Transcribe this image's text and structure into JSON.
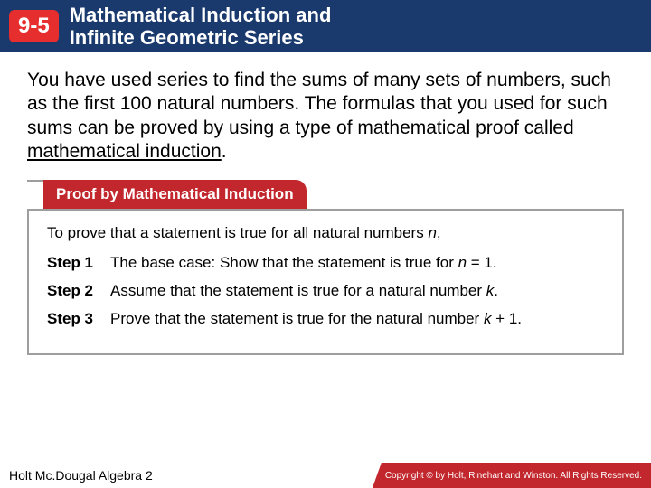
{
  "header": {
    "lesson_number": "9-5",
    "title_line1": "Mathematical Induction and",
    "title_line2": "Infinite Geometric Series",
    "bg_color": "#1a3a6e",
    "badge_bg": "#e62e2e",
    "text_color": "#ffffff"
  },
  "intro": {
    "text_part1": "You have used series to find the sums of many sets of numbers, such as the first 100 natural numbers. The formulas that you used for such sums can be proved by using a type of mathematical proof called ",
    "text_underlined": "mathematical induction",
    "text_part2": ".",
    "font_size": 21
  },
  "proof_box": {
    "tab_label": "Proof by Mathematical Induction",
    "tab_bg": "#c1272d",
    "border_color": "#9e9e9e",
    "lead": "To prove that a statement is true for all natural numbers ",
    "lead_var": "n",
    "lead_end": ",",
    "steps": [
      {
        "label": "Step 1",
        "text_a": "The base case: Show that the statement is true for ",
        "var": "n",
        "text_b": " = 1."
      },
      {
        "label": "Step 2",
        "text_a": "Assume that the statement is true for a natural number ",
        "var": "k",
        "text_b": "."
      },
      {
        "label": "Step 3",
        "text_a": "Prove that the statement is true for the natural number ",
        "var": "k",
        "text_b": " + 1."
      }
    ]
  },
  "footer": {
    "left": "Holt Mc.Dougal Algebra 2",
    "right": "Copyright © by Holt, Rinehart and Winston. All Rights Reserved.",
    "right_bg": "#c1272d"
  }
}
